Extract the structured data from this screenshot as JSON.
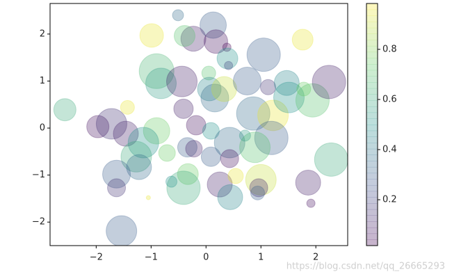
{
  "chart_data": {
    "type": "scatter",
    "colormap": "viridis",
    "alpha": 0.3,
    "clim": [
      0.017,
      0.983
    ],
    "x": [
      -2.57,
      -0.51,
      0.13,
      -0.99,
      -0.23,
      0.18,
      -0.39,
      0.38,
      0.39,
      0.41,
      1.05,
      1.76,
      -0.9,
      -0.82,
      -0.44,
      0.05,
      0.06,
      0.16,
      0.33,
      0.75,
      0.86,
      1.22,
      1.13,
      1.47,
      1.51,
      1.94,
      2.24,
      1.78,
      -1.43,
      -1.97,
      -1.72,
      -1.46,
      -0.9,
      -0.41,
      -0.18,
      0.09,
      0.43,
      1.19,
      0.89,
      0.71,
      -1.14,
      -1.27,
      -1.22,
      -0.71,
      -0.34,
      -0.22,
      0.09,
      0.43,
      -1.63,
      -1.63,
      -0.33,
      -0.41,
      0.25,
      0.44,
      1.0,
      0.96,
      1.86,
      2.28,
      1.91,
      -1.05,
      -1.54,
      -0.63,
      0.54,
      0.94
    ],
    "y": [
      0.39,
      2.4,
      2.19,
      1.97,
      1.9,
      1.84,
      1.96,
      1.72,
      1.48,
      1.33,
      1.56,
      1.88,
      1.21,
      0.95,
      0.99,
      1.17,
      0.83,
      0.64,
      0.83,
      1.0,
      0.31,
      0.27,
      0.87,
      0.96,
      0.65,
      0.59,
      0.98,
      0.83,
      0.44,
      0.03,
      0.09,
      -0.12,
      -0.06,
      0.41,
      0.06,
      -0.06,
      -0.31,
      -0.21,
      -0.41,
      -0.16,
      -0.31,
      -0.61,
      -0.83,
      -0.53,
      -0.41,
      -0.44,
      -0.61,
      -0.65,
      -0.98,
      -1.27,
      -0.98,
      -1.27,
      -1.2,
      -1.47,
      -1.1,
      -1.27,
      -1.16,
      -0.67,
      -1.6,
      -1.48,
      -2.19,
      -1.14,
      -1.02,
      -1.38
    ],
    "sizes": [
      1024,
      256,
      1444,
      1156,
      1296,
      1156,
      900,
      144,
      900,
      144,
      2304,
      900,
      2500,
      1936,
      1936,
      400,
      1156,
      1600,
      1296,
      1600,
      2304,
      1936,
      484,
      1296,
      1936,
      2304,
      2304,
      400,
      400,
      1024,
      1936,
      1296,
      1444,
      784,
      784,
      576,
      1936,
      2304,
      1936,
      256,
      1936,
      1936,
      1296,
      576,
      784,
      576,
      784,
      676,
      1600,
      676,
      900,
      2304,
      1296,
      1296,
      1936,
      676,
      1296,
      2304,
      144,
      36,
      1936,
      256,
      484,
      400
    ],
    "colors": [
      0.6,
      0.35,
      0.3,
      0.95,
      0.1,
      0.05,
      0.7,
      0.0,
      0.5,
      0.2,
      0.3,
      0.95,
      0.65,
      0.55,
      0.1,
      0.7,
      0.45,
      0.35,
      0.9,
      0.3,
      0.35,
      0.95,
      0.15,
      0.45,
      0.5,
      0.7,
      0.1,
      0.75,
      0.95,
      0.05,
      0.15,
      0.1,
      0.75,
      0.1,
      0.05,
      0.5,
      0.35,
      0.3,
      0.7,
      0.55,
      0.5,
      0.6,
      0.35,
      0.75,
      0.3,
      0.1,
      0.3,
      0.05,
      0.3,
      0.15,
      0.75,
      0.6,
      0.1,
      0.45,
      0.9,
      0.1,
      0.1,
      0.6,
      0.05,
      0.95,
      0.3,
      0.5,
      0.95,
      0.3
    ],
    "xlim": [
      -2.84,
      2.58
    ],
    "ylim": [
      -2.5,
      2.65
    ],
    "xticks": [
      {
        "value": -2,
        "label": "−2"
      },
      {
        "value": -1,
        "label": "−1"
      },
      0,
      1,
      2
    ],
    "yticks": [
      {
        "value": -2,
        "label": "−2"
      },
      {
        "value": -1,
        "label": "−1"
      },
      0,
      1,
      2
    ],
    "colorbar_ticks": [
      0.2,
      0.4,
      0.6,
      0.8
    ],
    "watermark": "https://blog.csdn.net/qq_26665293"
  }
}
